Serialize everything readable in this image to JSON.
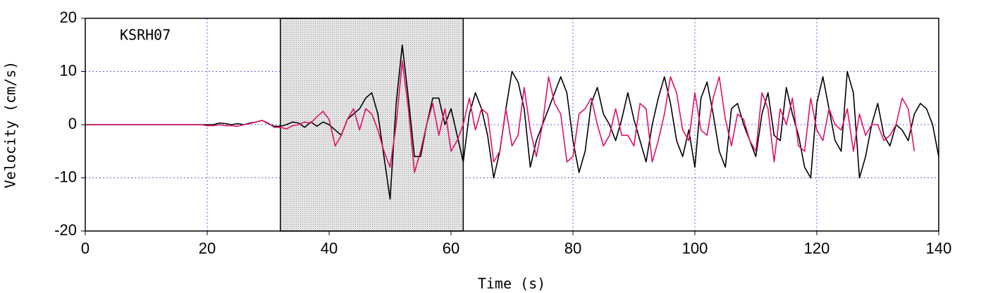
{
  "chart_data": {
    "type": "line",
    "annotation": "KSRH07",
    "xlabel": "Time (s)",
    "ylabel": "Velocity (cm/s)",
    "xlim": [
      0,
      140
    ],
    "xticks": [
      0,
      20,
      40,
      60,
      80,
      100,
      120,
      140
    ],
    "ylim": [
      -20,
      20
    ],
    "yticks": [
      -20,
      -10,
      0,
      10,
      20
    ],
    "grid": true,
    "grid_color": "#6666dd",
    "highlight": {
      "xlim": [
        32,
        62
      ],
      "color": "#e6e6e6"
    },
    "x": [
      0,
      1,
      2,
      3,
      4,
      5,
      6,
      7,
      8,
      9,
      10,
      11,
      12,
      13,
      14,
      15,
      16,
      17,
      18,
      19,
      20,
      21,
      22,
      23,
      24,
      25,
      26,
      27,
      28,
      29,
      30,
      31,
      32,
      33,
      34,
      35,
      36,
      37,
      38,
      39,
      40,
      41,
      42,
      43,
      44,
      45,
      46,
      47,
      48,
      49,
      50,
      51,
      52,
      53,
      54,
      55,
      56,
      57,
      58,
      59,
      60,
      61,
      62,
      63,
      64,
      65,
      66,
      67,
      68,
      69,
      70,
      71,
      72,
      73,
      74,
      75,
      76,
      77,
      78,
      79,
      80,
      81,
      82,
      83,
      84,
      85,
      86,
      87,
      88,
      89,
      90,
      91,
      92,
      93,
      94,
      95,
      96,
      97,
      98,
      99,
      100,
      101,
      102,
      103,
      104,
      105,
      106,
      107,
      108,
      109,
      110,
      111,
      112,
      113,
      114,
      115,
      116,
      117,
      118,
      119,
      120,
      121,
      122,
      123,
      124,
      125,
      126,
      127,
      128,
      129,
      130,
      131,
      132,
      133,
      134,
      135,
      136,
      137,
      138,
      139,
      140
    ],
    "series": [
      {
        "color": "#000000",
        "values": [
          0,
          0,
          0,
          0,
          0,
          0,
          0,
          0,
          0,
          0,
          0,
          0,
          0,
          0,
          0,
          0,
          0,
          0,
          0,
          0,
          0,
          0,
          0.3,
          0.2,
          0,
          0.2,
          0,
          0.3,
          0.5,
          0.8,
          0.2,
          -0.3,
          -0.3,
          0,
          0.5,
          0.3,
          -0.5,
          0.5,
          -0.3,
          0.5,
          0,
          -1,
          -2,
          1,
          2,
          3,
          5,
          6,
          2,
          -6,
          -14,
          4,
          15,
          5,
          -6,
          -6,
          0,
          5,
          5,
          0,
          3,
          -2,
          -7,
          2,
          6,
          3,
          -2,
          -10,
          -5,
          3,
          10,
          8,
          3,
          -8,
          -3,
          0,
          3,
          6,
          9,
          6,
          -3,
          -9,
          -5,
          4,
          7,
          2,
          0,
          -3,
          1,
          6,
          1,
          -3,
          -7,
          0,
          5,
          9,
          4,
          -3,
          -6,
          -1,
          -8,
          5,
          8,
          2,
          -5,
          -8,
          3,
          4,
          0,
          -3,
          -6,
          2,
          6,
          -2,
          -3,
          7,
          2,
          -2,
          -8,
          -10,
          4,
          9,
          3,
          -3,
          -5,
          10,
          6,
          -10,
          -6,
          0,
          4,
          -2,
          -4,
          0,
          -1,
          -3,
          2,
          4,
          3,
          0,
          -6
        ]
      },
      {
        "color": "#e0106a",
        "values": [
          0,
          0,
          0,
          0,
          0,
          0,
          0,
          0,
          0,
          0,
          0,
          0,
          0,
          0,
          0,
          0,
          0,
          0,
          0,
          0,
          -0.2,
          -0.2,
          0,
          -0.2,
          -0.2,
          -0.3,
          0,
          0.2,
          0.5,
          0.8,
          0.3,
          -0.5,
          -0.5,
          -0.8,
          -0.2,
          0,
          0.5,
          0.3,
          1.5,
          2.5,
          1,
          -4,
          -2,
          1,
          3,
          -1,
          3,
          2,
          -1,
          -5,
          -8,
          0,
          12,
          3,
          -9,
          -5,
          0,
          4,
          -2,
          3,
          -5,
          -3,
          0,
          5,
          -1,
          3,
          2,
          -7,
          -5,
          3,
          -4,
          -2,
          7,
          -1,
          -6,
          0,
          9,
          4,
          2,
          -7,
          -6,
          2,
          3,
          5,
          0,
          -4,
          -2,
          3,
          -2,
          -2,
          -4,
          4,
          3,
          -7,
          -3,
          2,
          9,
          6,
          -1,
          -3,
          6,
          -1,
          -2,
          5,
          9,
          1,
          -4,
          2,
          1,
          -3,
          -5,
          6,
          3,
          -7,
          3,
          0,
          5,
          -4,
          -5,
          5,
          -1,
          -3,
          3,
          0,
          -1,
          3,
          -5,
          2,
          -2,
          0,
          0,
          -3,
          -2,
          0,
          5,
          3,
          -5,
          null,
          null,
          null,
          null
        ]
      }
    ]
  }
}
